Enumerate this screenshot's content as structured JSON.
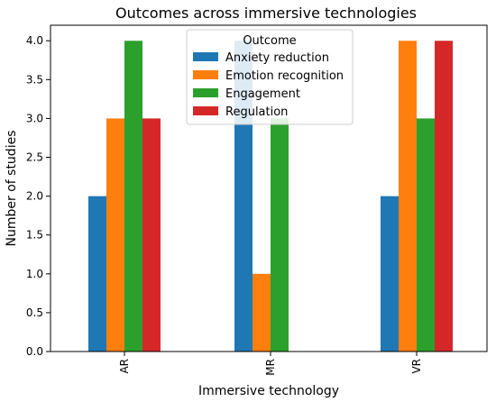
{
  "chart_data": {
    "type": "bar",
    "title": "Outcomes across immersive technologies",
    "xlabel": "Immersive technology",
    "ylabel": "Number of studies",
    "categories": [
      "AR",
      "MR",
      "VR"
    ],
    "ylim": [
      0,
      4.2
    ],
    "yticks": [
      "0.0",
      "0.5",
      "1.0",
      "1.5",
      "2.0",
      "2.5",
      "3.0",
      "3.5",
      "4.0"
    ],
    "grid": false,
    "legend": {
      "title": "Outcome",
      "placement": "top-center"
    },
    "series": [
      {
        "name": "Anxiety reduction",
        "color": "#1f77b4",
        "values": [
          2,
          4,
          2
        ]
      },
      {
        "name": "Emotion recognition",
        "color": "#ff7f0e",
        "values": [
          3,
          1,
          4
        ]
      },
      {
        "name": "Engagement",
        "color": "#2ca02c",
        "values": [
          4,
          3,
          3
        ]
      },
      {
        "name": "Regulation",
        "color": "#d62728",
        "values": [
          3,
          0,
          4
        ]
      }
    ]
  }
}
